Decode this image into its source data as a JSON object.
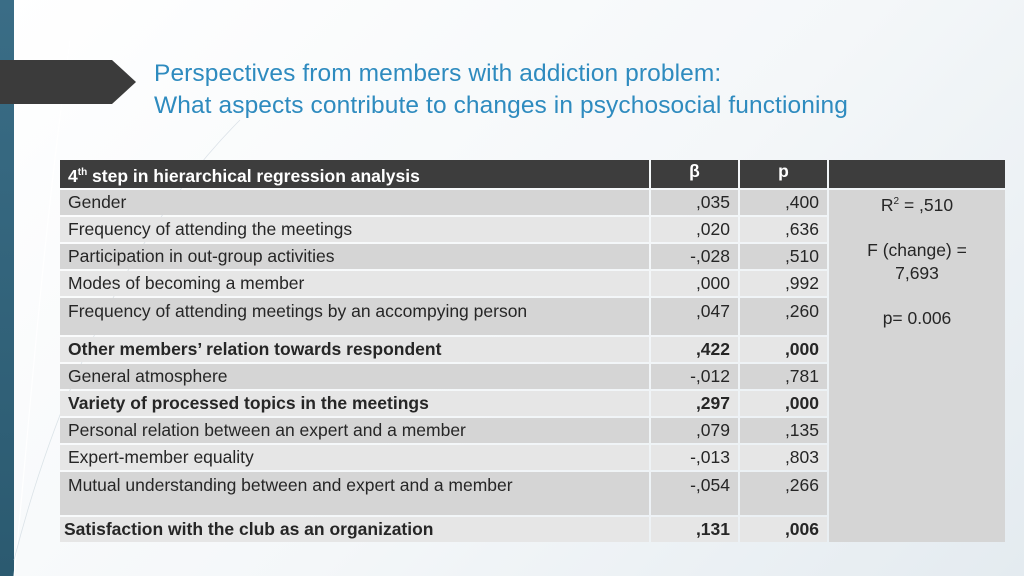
{
  "title": {
    "line1": "Perspectives from members with addiction problem:",
    "line2": "What aspects contribute to changes in psychosocial functioning"
  },
  "table": {
    "header": {
      "step_num": "4",
      "step_sup": "th",
      "step_rest": " step in hierarchical regression analysis",
      "beta": "β",
      "p": "p"
    },
    "rows": [
      {
        "label": "Gender",
        "beta": ",035",
        "p": ",400",
        "bold": false
      },
      {
        "label": "Frequency of attending the meetings",
        "beta": ",020",
        "p": ",636",
        "bold": false
      },
      {
        "label": "Participation in out-group activities",
        "beta": "-,028",
        "p": ",510",
        "bold": false
      },
      {
        "label": "Modes of becoming a member",
        "beta": ",000",
        "p": ",992",
        "bold": false
      },
      {
        "label": "Frequency of attending meetings by an accompying person",
        "beta": ",047",
        "p": ",260",
        "bold": false
      },
      {
        "label": "Other members’ relation towards respondent",
        "beta": ",422",
        "p": ",000",
        "bold": true
      },
      {
        "label": "General atmosphere",
        "beta": "-,012",
        "p": ",781",
        "bold": false
      },
      {
        "label": "Variety of processed topics in the meetings",
        "beta": ",297",
        "p": ",000",
        "bold": true
      },
      {
        "label": "Personal relation between an expert and a member",
        "beta": ",079",
        "p": ",135",
        "bold": false
      },
      {
        "label": "Expert-member equality",
        "beta": "-,013",
        "p": ",803",
        "bold": false
      },
      {
        "label": "Mutual understanding between and expert and a member",
        "beta": "-,054",
        "p": ",266",
        "bold": false
      },
      {
        "label": "Satisfaction with the club as an organization",
        "beta": ",131",
        "p": ",006",
        "bold": true
      }
    ],
    "stats": {
      "r2_prefix": "R",
      "r2_sup": "2",
      "r2_value": " = ,510",
      "f_label": "F (change) =",
      "f_value": "7,693",
      "p_value": "p= 0.006"
    }
  }
}
